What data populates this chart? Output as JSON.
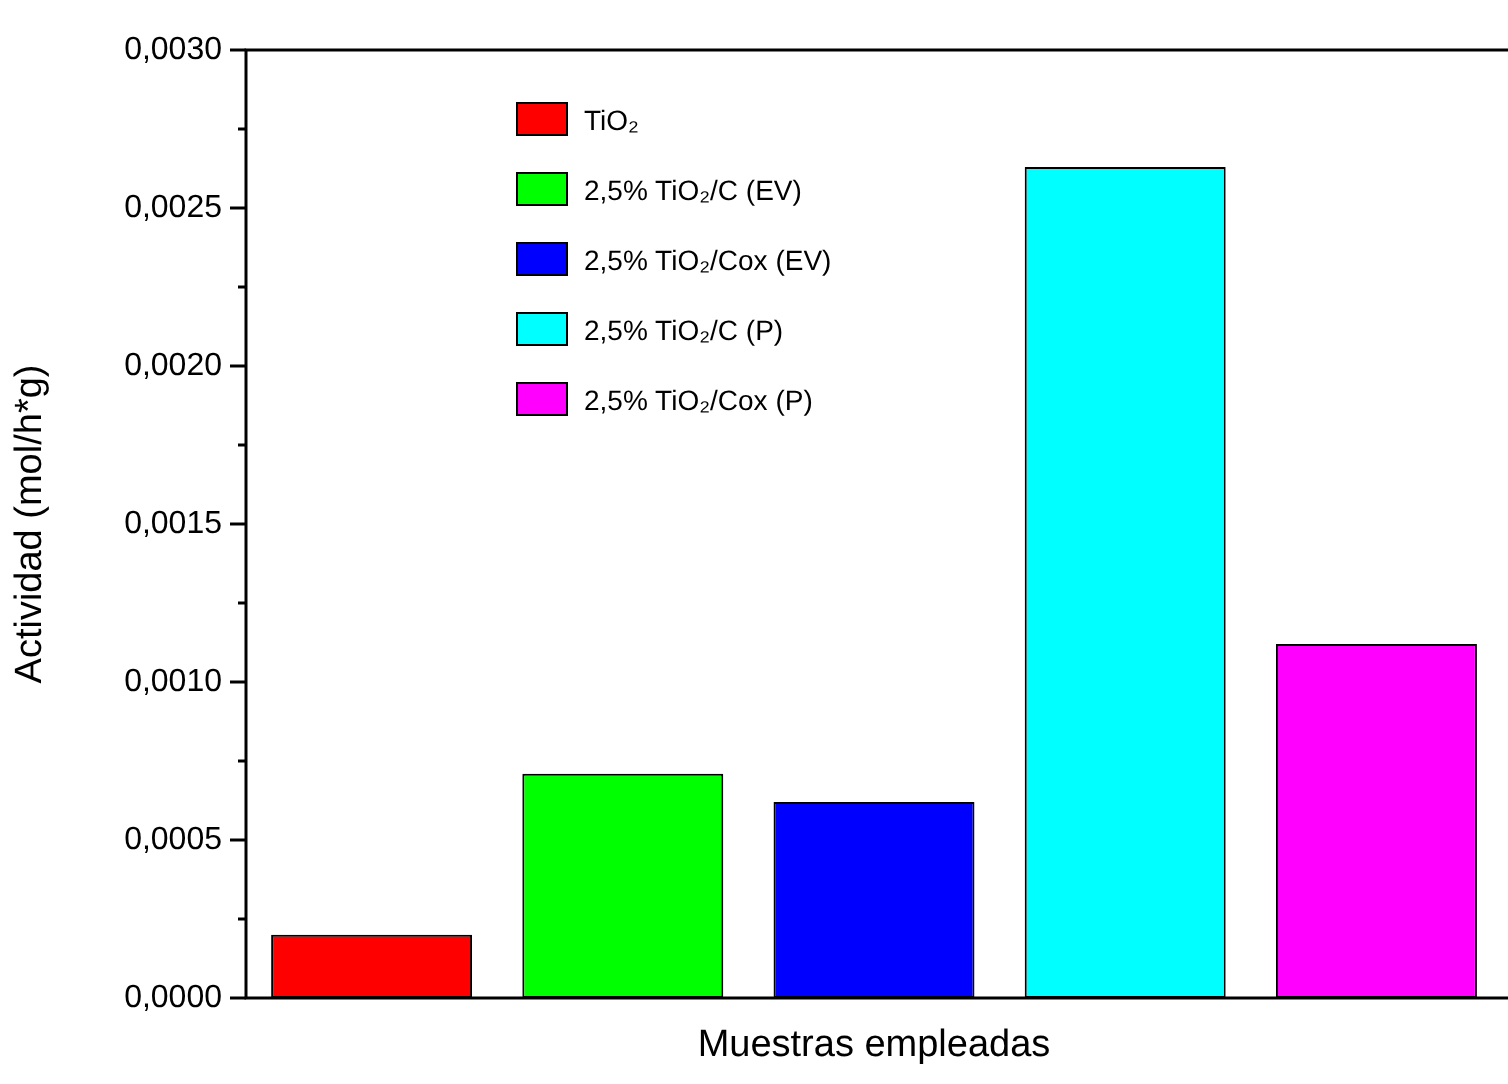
{
  "chart_data": {
    "type": "bar",
    "xlabel": "Muestras empleadas",
    "ylabel": "Actividad (mol/h*g)",
    "categories": [
      null
    ],
    "series": [
      {
        "name": "TiO₂",
        "color": "#ff0000",
        "values": [
          0.0002
        ]
      },
      {
        "name": "2,5% TiO₂/C (EV)",
        "color": "#00ff00",
        "values": [
          0.00071
        ]
      },
      {
        "name": "2,5% TiO₂/Cox (EV)",
        "color": "#0000ff",
        "values": [
          0.00062
        ]
      },
      {
        "name": "2,5% TiO₂/C (P)",
        "color": "#00ffff",
        "values": [
          0.00263
        ]
      },
      {
        "name": "2,5% TiO₂/Cox (P)",
        "color": "#ff00ff",
        "values": [
          0.00112
        ]
      }
    ],
    "ylim": [
      0,
      0.003
    ],
    "yticks": [
      {
        "value": 0,
        "label": "0,0000"
      },
      {
        "value": 0.00025,
        "label": null
      },
      {
        "value": 0.0005,
        "label": "0,0005"
      },
      {
        "value": 0.00075,
        "label": null
      },
      {
        "value": 0.001,
        "label": "0,0010"
      },
      {
        "value": 0.00125,
        "label": null
      },
      {
        "value": 0.0015,
        "label": "0,0015"
      },
      {
        "value": 0.00175,
        "label": null
      },
      {
        "value": 0.002,
        "label": "0,0020"
      },
      {
        "value": 0.00225,
        "label": null
      },
      {
        "value": 0.0025,
        "label": "0,0025"
      },
      {
        "value": 0.00275,
        "label": null
      },
      {
        "value": 0.003,
        "label": "0,0030"
      }
    ],
    "grid": false,
    "legend": "top left",
    "tick_labels": "y"
  }
}
